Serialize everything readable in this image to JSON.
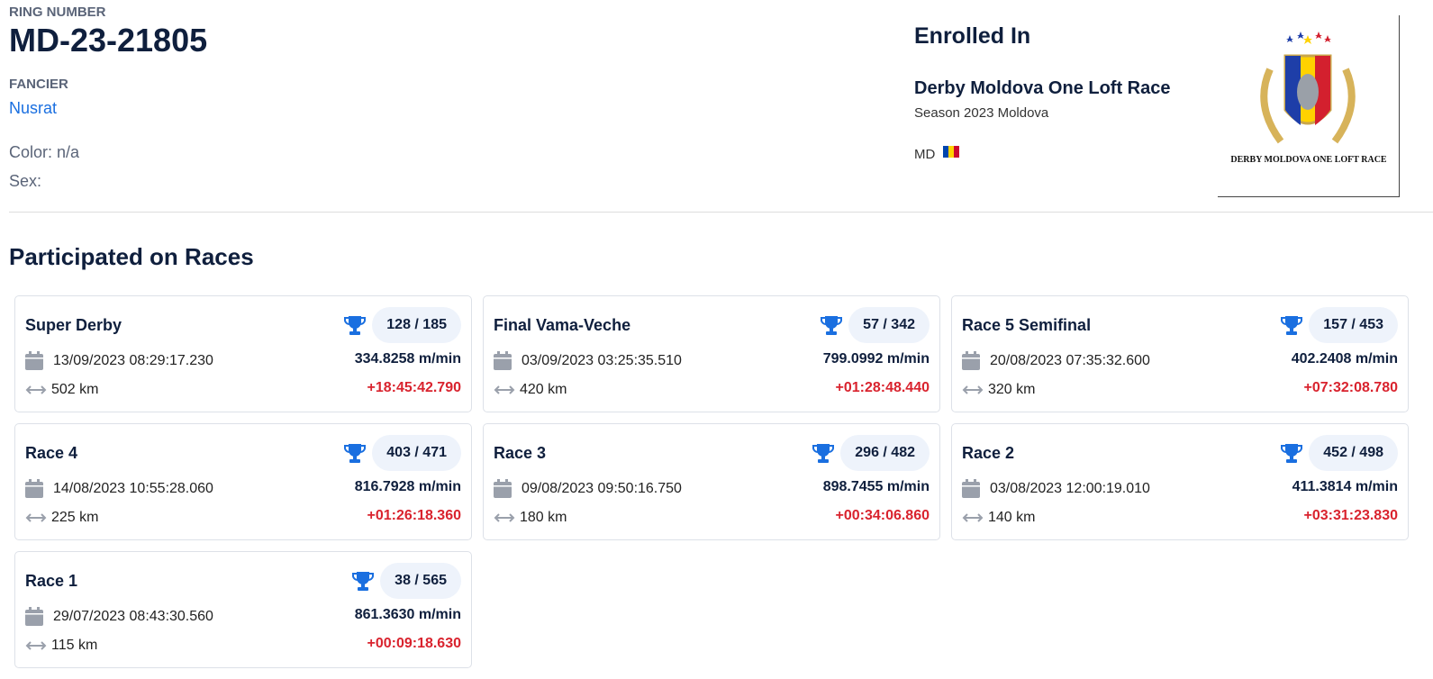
{
  "header": {
    "ring_label": "RING NUMBER",
    "ring_number": "MD-23-21805",
    "fancier_label": "FANCIER",
    "fancier_name": "Nusrat",
    "color": "Color: n/a",
    "sex": "Sex:"
  },
  "enrolled": {
    "title": "Enrolled In",
    "race_name": "Derby Moldova One Loft Race",
    "season": "Season 2023 Moldova",
    "country": "MD",
    "logo_text": "DERBY MOLDOVA ONE LOFT RACE"
  },
  "section_title": "Participated on Races",
  "races": [
    {
      "name": "Super Derby",
      "rank": "128 / 185",
      "date": "13/09/2023 08:29:17.230",
      "speed": "334.8258 m/min",
      "distance": "502 km",
      "time_diff": "+18:45:42.790"
    },
    {
      "name": "Final Vama-Veche",
      "rank": "57 / 342",
      "date": "03/09/2023 03:25:35.510",
      "speed": "799.0992 m/min",
      "distance": "420 km",
      "time_diff": "+01:28:48.440"
    },
    {
      "name": "Race 5 Semifinal",
      "rank": "157 / 453",
      "date": "20/08/2023 07:35:32.600",
      "speed": "402.2408 m/min",
      "distance": "320 km",
      "time_diff": "+07:32:08.780"
    },
    {
      "name": "Race 4",
      "rank": "403 / 471",
      "date": "14/08/2023 10:55:28.060",
      "speed": "816.7928 m/min",
      "distance": "225 km",
      "time_diff": "+01:26:18.360"
    },
    {
      "name": "Race 3",
      "rank": "296 / 482",
      "date": "09/08/2023 09:50:16.750",
      "speed": "898.7455 m/min",
      "distance": "180 km",
      "time_diff": "+00:34:06.860"
    },
    {
      "name": "Race 2",
      "rank": "452 / 498",
      "date": "03/08/2023 12:00:19.010",
      "speed": "411.3814 m/min",
      "distance": "140 km",
      "time_diff": "+03:31:23.830"
    },
    {
      "name": "Race 1",
      "rank": "38 / 565",
      "date": "29/07/2023 08:43:30.560",
      "speed": "861.3630 m/min",
      "distance": "115 km",
      "time_diff": "+00:09:18.630"
    }
  ]
}
